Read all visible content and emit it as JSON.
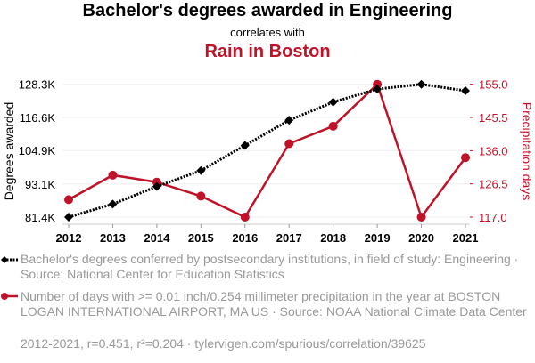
{
  "chart_data": {
    "type": "line",
    "title": "Bachelor's degrees awarded in Engineering",
    "subtitle": "correlates with",
    "title2": "Rain in Boston",
    "x": [
      2012,
      2013,
      2014,
      2015,
      2016,
      2017,
      2018,
      2019,
      2020,
      2021
    ],
    "x_tick_labels": [
      "2012",
      "2013",
      "2014",
      "2015",
      "2016",
      "2017",
      "2018",
      "2019",
      "2020",
      "2021"
    ],
    "ylabel_left": "Degrees awarded",
    "ylabel_right": "Precipitation days",
    "ylim_left": [
      81.4,
      128.3
    ],
    "ylim_right": [
      117.0,
      155.0
    ],
    "left_ticks": [
      81.4,
      93.1,
      104.9,
      116.6,
      128.3
    ],
    "left_tick_labels": [
      "81.4K",
      "93.1K",
      "104.9K",
      "116.6K",
      "128.3K"
    ],
    "right_ticks": [
      117.0,
      126.5,
      136.0,
      145.5,
      155.0
    ],
    "right_tick_labels": [
      "117.0",
      "126.5",
      "136.0",
      "145.5",
      "155.0"
    ],
    "grid": true,
    "series": [
      {
        "name": "Bachelor's degrees conferred by postsecondary institutions, in field of study: Engineering · Source: National Center for Education Statistics",
        "axis": "left",
        "color": "#000000",
        "style": "dotted",
        "marker": "diamond",
        "values": [
          81.4,
          86.0,
          92.2,
          97.8,
          106.7,
          115.6,
          122.0,
          126.6,
          128.3,
          126.0
        ]
      },
      {
        "name": "Number of days with >= 0.01 inch/0.254 millimeter precipitation in the year at BOSTON LOGAN INTERNATIONAL AIRPORT, MA US · Source: NOAA National Climate Data Center",
        "axis": "right",
        "color": "#c0132a",
        "style": "solid",
        "marker": "circle",
        "values": [
          122,
          129,
          127,
          123,
          117,
          138,
          143,
          155,
          117,
          134
        ]
      }
    ],
    "footer": "2012-2021, r=0.451, r²=0.204 · tylervigen.com/spurious/correlation/39625",
    "legend_position": "bottom"
  }
}
